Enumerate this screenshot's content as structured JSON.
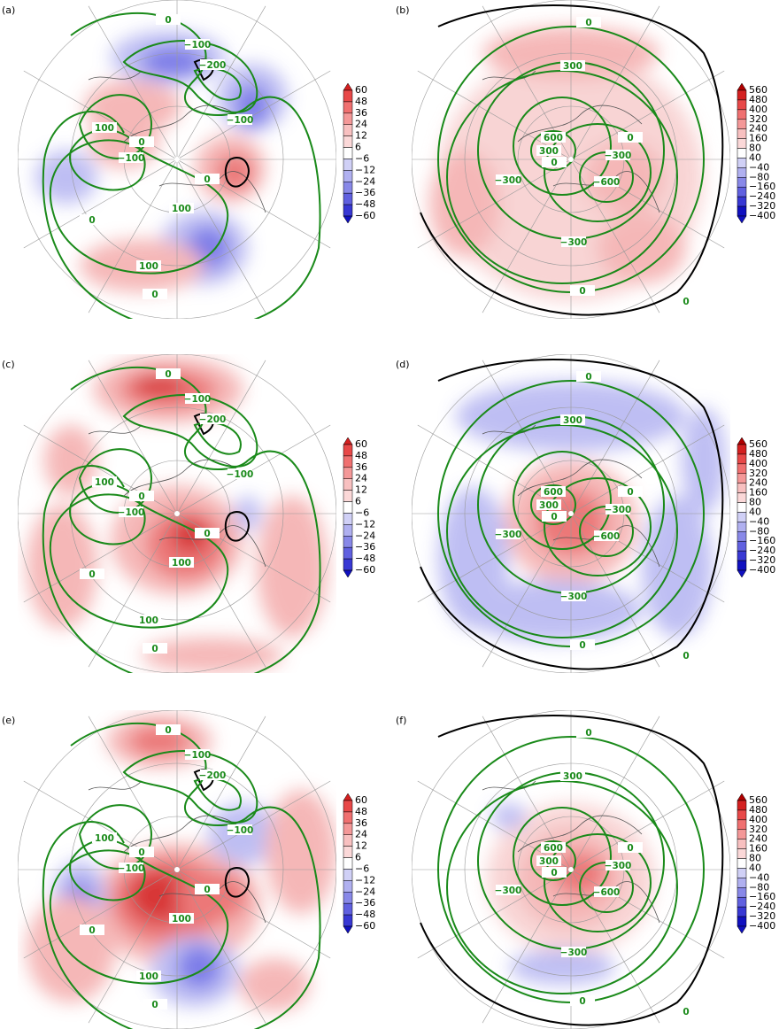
{
  "panels": [
    {
      "label": "(a)",
      "colorbar": [
        "60",
        "48",
        "36",
        "24",
        "12",
        "6",
        "−6",
        "−12",
        "−24",
        "−36",
        "−48",
        "−60"
      ],
      "contour_labels": [
        "0",
        "−100",
        "−200",
        "−100",
        "100",
        "0",
        "−100",
        "0",
        "100",
        "0",
        "100",
        "0"
      ]
    },
    {
      "label": "(b)",
      "colorbar": [
        "560",
        "480",
        "400",
        "320",
        "240",
        "160",
        "80",
        "40",
        "−40",
        "−80",
        "−160",
        "−240",
        "−320",
        "−400"
      ],
      "contour_labels": [
        "0",
        "300",
        "600",
        "300",
        "0",
        "0",
        "−300",
        "−300",
        "−600",
        "−300",
        "0",
        "0"
      ]
    },
    {
      "label": "(c)",
      "colorbar": [
        "60",
        "48",
        "36",
        "24",
        "12",
        "6",
        "−6",
        "−12",
        "−24",
        "−36",
        "−48",
        "−60"
      ],
      "contour_labels": [
        "0",
        "−100",
        "−200",
        "−100",
        "100",
        "0",
        "−100",
        "0",
        "100",
        "0",
        "100",
        "0"
      ]
    },
    {
      "label": "(d)",
      "colorbar": [
        "560",
        "480",
        "400",
        "320",
        "240",
        "160",
        "80",
        "40",
        "−40",
        "−80",
        "−160",
        "−240",
        "−320",
        "−400"
      ],
      "contour_labels": [
        "0",
        "300",
        "600",
        "300",
        "0",
        "0",
        "−300",
        "−300",
        "−600",
        "−300",
        "0",
        "0"
      ]
    },
    {
      "label": "(e)",
      "colorbar": [
        "60",
        "48",
        "36",
        "24",
        "12",
        "6",
        "−6",
        "−12",
        "−24",
        "−36",
        "−48",
        "−60"
      ],
      "contour_labels": [
        "0",
        "−100",
        "−200",
        "−100",
        "100",
        "0",
        "−100",
        "0",
        "100",
        "0",
        "100",
        "0"
      ]
    },
    {
      "label": "(f)",
      "colorbar": [
        "560",
        "480",
        "400",
        "320",
        "240",
        "160",
        "80",
        "40",
        "−40",
        "−80",
        "−160",
        "−240",
        "−320",
        "−400"
      ],
      "contour_labels": [
        "0",
        "300",
        "600",
        "300",
        "0",
        "0",
        "−300",
        "−300",
        "−600",
        "−300",
        "0",
        "0"
      ]
    }
  ]
}
